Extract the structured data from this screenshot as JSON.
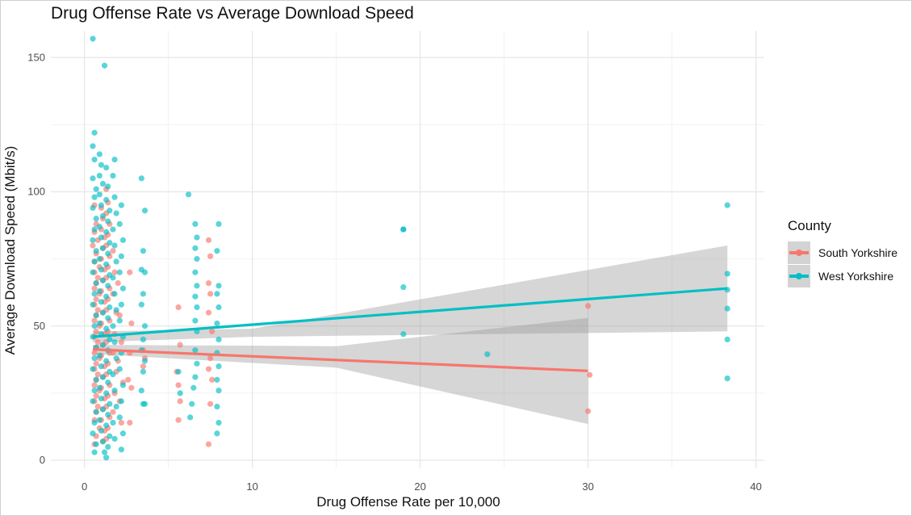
{
  "chart_data": {
    "type": "scatter",
    "title": "Drug Offense Rate vs Average Download Speed",
    "xlabel": "Drug Offense Rate per 10,000",
    "ylabel": "Average Download Speed (Mbit/s)",
    "xlim": [
      -2,
      40.5
    ],
    "ylim": [
      -3,
      160
    ],
    "x_ticks": [
      0,
      10,
      20,
      30,
      40
    ],
    "y_ticks": [
      0,
      50,
      100,
      150
    ],
    "grid": true,
    "legend": {
      "title": "County",
      "position": "right"
    },
    "series": [
      {
        "name": "South Yorkshire",
        "color": "#F8766D",
        "points": [
          [
            0.6,
            95
          ],
          [
            0.7,
            88
          ],
          [
            0.6,
            85
          ],
          [
            0.8,
            82
          ],
          [
            0.5,
            80
          ],
          [
            0.7,
            77
          ],
          [
            0.6,
            74
          ],
          [
            0.9,
            72
          ],
          [
            0.6,
            70
          ],
          [
            0.8,
            68
          ],
          [
            0.7,
            66
          ],
          [
            0.6,
            64
          ],
          [
            0.9,
            62
          ],
          [
            0.7,
            60
          ],
          [
            0.6,
            58
          ],
          [
            0.8,
            56
          ],
          [
            0.7,
            54
          ],
          [
            0.6,
            52
          ],
          [
            0.9,
            50
          ],
          [
            0.7,
            48
          ],
          [
            0.6,
            46
          ],
          [
            0.8,
            44
          ],
          [
            0.7,
            42
          ],
          [
            0.6,
            40
          ],
          [
            0.9,
            38
          ],
          [
            0.7,
            36
          ],
          [
            0.6,
            34
          ],
          [
            0.8,
            32
          ],
          [
            0.7,
            30
          ],
          [
            0.6,
            28
          ],
          [
            0.9,
            26
          ],
          [
            0.7,
            24
          ],
          [
            0.6,
            22
          ],
          [
            0.8,
            20
          ],
          [
            0.7,
            18
          ],
          [
            0.6,
            15
          ],
          [
            0.9,
            12
          ],
          [
            0.7,
            9
          ],
          [
            0.6,
            6
          ],
          [
            1.0,
            94
          ],
          [
            1.1,
            90
          ],
          [
            1.0,
            86
          ],
          [
            1.2,
            83
          ],
          [
            1.1,
            79
          ],
          [
            1.0,
            75
          ],
          [
            1.2,
            71
          ],
          [
            1.1,
            67
          ],
          [
            1.0,
            63
          ],
          [
            1.2,
            59
          ],
          [
            1.1,
            55
          ],
          [
            1.0,
            51
          ],
          [
            1.2,
            47
          ],
          [
            1.1,
            43
          ],
          [
            1.0,
            39
          ],
          [
            1.2,
            35
          ],
          [
            1.1,
            31
          ],
          [
            1.0,
            27
          ],
          [
            1.2,
            23
          ],
          [
            1.1,
            19
          ],
          [
            1.0,
            15
          ],
          [
            1.2,
            11
          ],
          [
            1.1,
            7
          ],
          [
            1.3,
            101
          ],
          [
            1.4,
            96
          ],
          [
            1.3,
            92
          ],
          [
            1.5,
            88
          ],
          [
            1.4,
            84
          ],
          [
            1.3,
            80
          ],
          [
            1.5,
            76
          ],
          [
            1.4,
            72
          ],
          [
            1.3,
            68
          ],
          [
            1.5,
            64
          ],
          [
            1.4,
            60
          ],
          [
            1.3,
            56
          ],
          [
            1.5,
            52
          ],
          [
            1.4,
            48
          ],
          [
            1.3,
            44
          ],
          [
            1.5,
            40
          ],
          [
            1.4,
            36
          ],
          [
            1.3,
            32
          ],
          [
            1.5,
            28
          ],
          [
            1.4,
            24
          ],
          [
            1.3,
            20
          ],
          [
            1.5,
            16
          ],
          [
            1.4,
            12
          ],
          [
            1.3,
            8
          ],
          [
            1.7,
            78
          ],
          [
            1.8,
            70
          ],
          [
            1.7,
            62
          ],
          [
            1.9,
            55
          ],
          [
            1.8,
            47
          ],
          [
            1.7,
            40
          ],
          [
            1.9,
            33
          ],
          [
            1.8,
            25
          ],
          [
            1.7,
            18
          ],
          [
            2.0,
            66
          ],
          [
            2.1,
            54
          ],
          [
            2.2,
            44
          ],
          [
            2.0,
            37
          ],
          [
            2.3,
            29
          ],
          [
            2.1,
            22
          ],
          [
            2.2,
            14
          ],
          [
            2.7,
            70
          ],
          [
            2.8,
            51
          ],
          [
            2.7,
            40
          ],
          [
            2.6,
            30
          ],
          [
            2.8,
            27
          ],
          [
            2.7,
            14
          ],
          [
            3.5,
            41
          ],
          [
            3.6,
            38
          ],
          [
            3.5,
            35
          ],
          [
            5.6,
            57
          ],
          [
            5.7,
            43
          ],
          [
            5.5,
            33
          ],
          [
            5.6,
            28
          ],
          [
            5.7,
            22
          ],
          [
            5.6,
            15
          ],
          [
            7.4,
            82
          ],
          [
            7.5,
            76
          ],
          [
            7.4,
            66
          ],
          [
            7.5,
            62
          ],
          [
            7.4,
            55
          ],
          [
            7.6,
            48
          ],
          [
            7.5,
            38
          ],
          [
            7.4,
            34
          ],
          [
            7.6,
            30
          ],
          [
            7.5,
            21
          ],
          [
            7.4,
            6
          ],
          [
            30.0,
            57.5
          ],
          [
            30.1,
            31.8
          ],
          [
            30.0,
            18.3
          ]
        ],
        "trend": [
          [
            0.5,
            41.3
          ],
          [
            30.0,
            33.3
          ]
        ],
        "band_upper": [
          [
            0.5,
            43.0
          ],
          [
            15,
            42.5
          ],
          [
            30.0,
            53.0
          ]
        ],
        "band_lower": [
          [
            0.5,
            39.6
          ],
          [
            15,
            34.5
          ],
          [
            30.0,
            13.5
          ]
        ]
      },
      {
        "name": "West Yorkshire",
        "color": "#00BFC4",
        "points": [
          [
            0.5,
            157
          ],
          [
            0.6,
            122
          ],
          [
            0.5,
            117
          ],
          [
            0.6,
            112
          ],
          [
            0.5,
            105
          ],
          [
            0.7,
            101
          ],
          [
            0.6,
            98
          ],
          [
            0.5,
            94
          ],
          [
            0.7,
            90
          ],
          [
            0.6,
            86
          ],
          [
            0.5,
            82
          ],
          [
            0.7,
            78
          ],
          [
            0.6,
            74
          ],
          [
            0.5,
            70
          ],
          [
            0.7,
            66
          ],
          [
            0.6,
            62
          ],
          [
            0.5,
            58
          ],
          [
            0.7,
            54
          ],
          [
            0.6,
            50
          ],
          [
            0.5,
            46
          ],
          [
            0.7,
            42
          ],
          [
            0.6,
            38
          ],
          [
            0.5,
            34
          ],
          [
            0.7,
            30
          ],
          [
            0.6,
            26
          ],
          [
            0.5,
            22
          ],
          [
            0.7,
            18
          ],
          [
            0.6,
            14
          ],
          [
            0.5,
            10
          ],
          [
            0.7,
            6
          ],
          [
            0.6,
            3
          ],
          [
            1.2,
            147
          ],
          [
            0.9,
            114
          ],
          [
            1.0,
            110
          ],
          [
            0.9,
            106
          ],
          [
            1.1,
            103
          ],
          [
            0.9,
            99
          ],
          [
            1.0,
            95
          ],
          [
            1.1,
            91
          ],
          [
            0.9,
            87
          ],
          [
            1.0,
            83
          ],
          [
            1.1,
            79
          ],
          [
            0.9,
            75
          ],
          [
            1.0,
            71
          ],
          [
            1.1,
            67
          ],
          [
            0.9,
            63
          ],
          [
            1.0,
            59
          ],
          [
            1.1,
            55
          ],
          [
            0.9,
            51
          ],
          [
            1.0,
            47
          ],
          [
            1.1,
            43
          ],
          [
            0.9,
            39
          ],
          [
            1.0,
            35
          ],
          [
            1.1,
            31
          ],
          [
            0.9,
            27
          ],
          [
            1.0,
            23
          ],
          [
            1.1,
            19
          ],
          [
            0.9,
            15
          ],
          [
            1.0,
            11
          ],
          [
            1.1,
            7
          ],
          [
            1.2,
            3
          ],
          [
            1.3,
            109
          ],
          [
            1.4,
            102
          ],
          [
            1.3,
            97
          ],
          [
            1.5,
            93
          ],
          [
            1.4,
            89
          ],
          [
            1.3,
            85
          ],
          [
            1.5,
            81
          ],
          [
            1.4,
            77
          ],
          [
            1.3,
            73
          ],
          [
            1.5,
            69
          ],
          [
            1.4,
            65
          ],
          [
            1.3,
            61
          ],
          [
            1.5,
            57
          ],
          [
            1.4,
            53
          ],
          [
            1.3,
            49
          ],
          [
            1.5,
            45
          ],
          [
            1.4,
            41
          ],
          [
            1.3,
            37
          ],
          [
            1.5,
            33
          ],
          [
            1.4,
            29
          ],
          [
            1.3,
            25
          ],
          [
            1.5,
            21
          ],
          [
            1.4,
            17
          ],
          [
            1.3,
            13
          ],
          [
            1.5,
            9
          ],
          [
            1.4,
            5
          ],
          [
            1.3,
            1
          ],
          [
            1.8,
            112
          ],
          [
            1.7,
            106
          ],
          [
            1.8,
            98
          ],
          [
            1.9,
            92
          ],
          [
            1.7,
            86
          ],
          [
            1.8,
            80
          ],
          [
            1.9,
            74
          ],
          [
            1.7,
            68
          ],
          [
            1.8,
            62
          ],
          [
            1.9,
            56
          ],
          [
            1.7,
            50
          ],
          [
            1.8,
            44
          ],
          [
            1.9,
            38
          ],
          [
            1.7,
            32
          ],
          [
            1.8,
            26
          ],
          [
            1.9,
            20
          ],
          [
            1.7,
            14
          ],
          [
            1.8,
            8
          ],
          [
            2.2,
            95
          ],
          [
            2.1,
            88
          ],
          [
            2.3,
            82
          ],
          [
            2.2,
            76
          ],
          [
            2.1,
            70
          ],
          [
            2.3,
            64
          ],
          [
            2.2,
            58
          ],
          [
            2.1,
            52
          ],
          [
            2.3,
            46
          ],
          [
            2.2,
            40
          ],
          [
            2.1,
            34
          ],
          [
            2.3,
            28
          ],
          [
            2.2,
            22
          ],
          [
            2.1,
            16
          ],
          [
            2.3,
            10
          ],
          [
            2.2,
            4
          ],
          [
            3.4,
            105
          ],
          [
            3.6,
            93
          ],
          [
            3.5,
            78
          ],
          [
            3.4,
            71
          ],
          [
            3.6,
            70
          ],
          [
            3.5,
            62
          ],
          [
            3.4,
            58
          ],
          [
            3.6,
            50
          ],
          [
            3.5,
            45
          ],
          [
            3.4,
            41
          ],
          [
            3.6,
            37
          ],
          [
            3.5,
            33
          ],
          [
            3.4,
            26
          ],
          [
            3.6,
            21
          ],
          [
            3.5,
            21
          ],
          [
            6.2,
            99
          ],
          [
            6.6,
            88
          ],
          [
            6.7,
            83
          ],
          [
            6.6,
            79
          ],
          [
            6.7,
            75
          ],
          [
            6.6,
            70
          ],
          [
            6.7,
            65
          ],
          [
            6.6,
            61
          ],
          [
            6.7,
            57
          ],
          [
            6.6,
            52
          ],
          [
            6.7,
            48
          ],
          [
            6.6,
            41
          ],
          [
            6.7,
            36
          ],
          [
            6.6,
            31
          ],
          [
            6.5,
            27
          ],
          [
            6.4,
            21
          ],
          [
            6.3,
            16
          ],
          [
            5.6,
            33
          ],
          [
            5.7,
            25
          ],
          [
            8.0,
            88
          ],
          [
            7.9,
            78
          ],
          [
            8.0,
            65
          ],
          [
            7.9,
            62
          ],
          [
            8.0,
            57
          ],
          [
            7.9,
            51
          ],
          [
            8.0,
            45
          ],
          [
            7.9,
            40
          ],
          [
            8.0,
            35
          ],
          [
            7.9,
            30
          ],
          [
            8.0,
            26
          ],
          [
            7.9,
            20
          ],
          [
            8.0,
            14
          ],
          [
            7.9,
            10
          ],
          [
            19.0,
            86
          ],
          [
            19.0,
            86
          ],
          [
            19.0,
            64.5
          ],
          [
            19.0,
            47
          ],
          [
            24.0,
            39.5
          ],
          [
            38.3,
            95
          ],
          [
            38.3,
            69.5
          ],
          [
            38.3,
            63.5
          ],
          [
            38.3,
            56.5
          ],
          [
            38.3,
            45
          ],
          [
            38.3,
            30.5
          ]
        ],
        "trend": [
          [
            0.5,
            46.0
          ],
          [
            38.3,
            64.0
          ]
        ],
        "band_upper": [
          [
            0.5,
            48.0
          ],
          [
            10,
            49.0
          ],
          [
            38.3,
            80.0
          ]
        ],
        "band_lower": [
          [
            0.5,
            44.0
          ],
          [
            10,
            46.0
          ],
          [
            38.3,
            48.0
          ]
        ]
      }
    ]
  }
}
